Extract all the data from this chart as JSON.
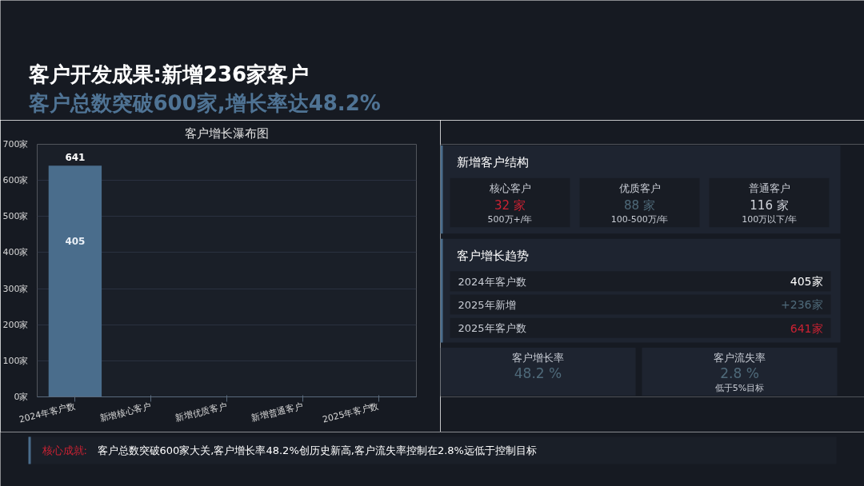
{
  "chart_data": [
    {
      "type": "other",
      "title": "客户开发成果:新增236家客户",
      "subtitle": "客户总数突破600家,增长率达48.2%"
    },
    {
      "type": "bar",
      "title": "客户增长瀑布图",
      "categories": [
        "2024年客户数",
        "新增核心客户",
        "新增优质客户",
        "新增普通客户",
        "2025年客户数"
      ],
      "values": [
        641,
        null,
        null,
        null,
        null
      ],
      "color": "#4a6d8c",
      "ylim": [
        0,
        700
      ],
      "yticks": [
        {
          "value": 0,
          "label": "0家"
        },
        {
          "value": 100,
          "label": "100家"
        },
        {
          "value": 200,
          "label": "200家"
        },
        {
          "value": 300,
          "label": "300家"
        },
        {
          "value": 400,
          "label": "400家"
        },
        {
          "value": 500,
          "label": "500家"
        },
        {
          "value": 600,
          "label": "600家"
        },
        {
          "value": 700,
          "label": "700家"
        }
      ],
      "grid": "y",
      "data_labels": true,
      "annotations": [
        {
          "text": "405",
          "x": "2024年客户数",
          "y": 433
        }
      ]
    },
    {
      "type": "other",
      "title": "新增客户结构",
      "annotations": [
        "核心客户",
        "32 家",
        "500万+/年",
        "优质客户",
        "88 家",
        "100-500万/年",
        "普通客户",
        "116 家",
        "100万以下/年"
      ]
    },
    {
      "type": "other",
      "title": "客户增长趋势",
      "annotations": [
        "2024年客户数",
        "405家",
        "2025年新增",
        "+236家",
        "2025年客户数",
        "641家"
      ]
    },
    {
      "type": "other",
      "annotations": [
        "客户增长率",
        "48.2 %",
        "客户流失率",
        "2.8 %",
        "低于5%目标"
      ]
    },
    {
      "type": "other",
      "annotations": [
        "核心成就:",
        "客户总数突破600家大关,客户增长率48.2%创历史新高,客户流失率控制在2.8%远低于控制目标"
      ]
    }
  ]
}
